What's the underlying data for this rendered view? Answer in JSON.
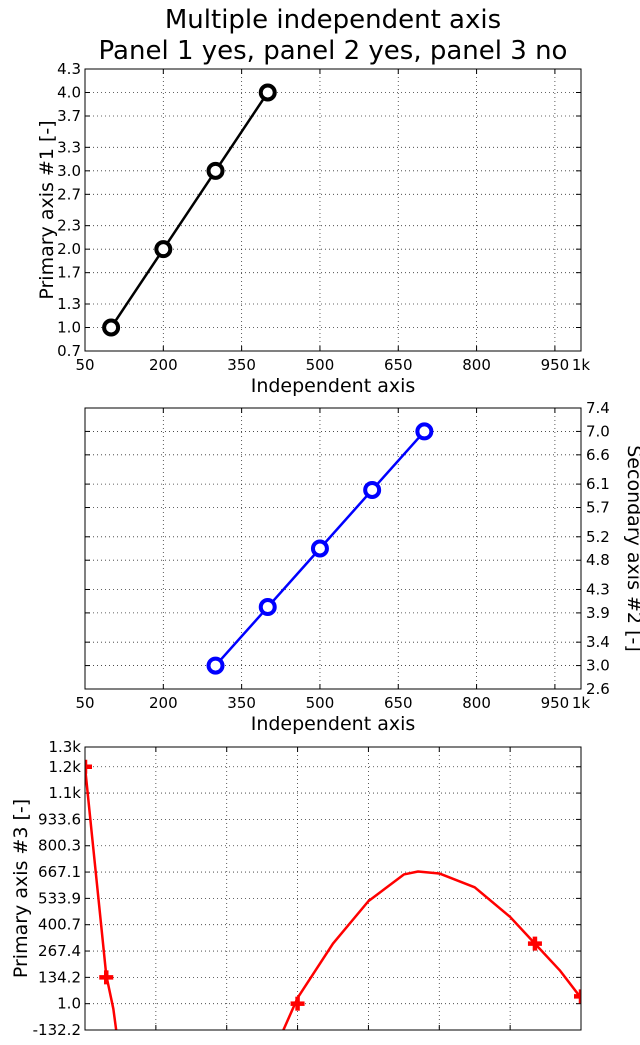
{
  "title_lines": [
    "Multiple independent axis",
    "Panel 1 yes, panel 2 yes, panel 3 no"
  ],
  "chart_data": [
    {
      "type": "line",
      "ylabel": "Primary axis #1 [-]",
      "xlabel": "Independent axis",
      "xlim": [
        50,
        1000
      ],
      "ylim": [
        0.7,
        4.3
      ],
      "xticks": [
        50,
        200,
        350,
        500,
        650,
        800,
        950,
        1000
      ],
      "xtick_labels": [
        "50",
        "200",
        "350",
        "500",
        "650",
        "800",
        "950",
        "1k"
      ],
      "yticks": [
        0.7,
        1.0,
        1.3,
        1.7,
        2.0,
        2.3,
        2.7,
        3.0,
        3.3,
        3.7,
        4.0,
        4.3
      ],
      "ytick_labels": [
        "0.7",
        "1.0",
        "1.3",
        "1.7",
        "2.0",
        "2.3",
        "2.7",
        "3.0",
        "3.3",
        "3.7",
        "4.0",
        "4.3"
      ],
      "yaxis_side": "left",
      "grid": true,
      "series": [
        {
          "color": "#000000",
          "marker": "circle",
          "x": [
            100,
            200,
            300,
            400
          ],
          "y": [
            1.0,
            2.0,
            3.0,
            4.0
          ]
        }
      ]
    },
    {
      "type": "line",
      "ylabel": "Secondary axis #2 [-]",
      "xlabel": "Independent axis",
      "xlim": [
        50,
        1000
      ],
      "ylim": [
        2.6,
        7.4
      ],
      "xticks": [
        50,
        200,
        350,
        500,
        650,
        800,
        950,
        1000
      ],
      "xtick_labels": [
        "50",
        "200",
        "350",
        "500",
        "650",
        "800",
        "950",
        "1k"
      ],
      "yticks": [
        2.6,
        3.0,
        3.4,
        3.9,
        4.3,
        4.8,
        5.2,
        5.7,
        6.1,
        6.6,
        7.0,
        7.4
      ],
      "ytick_labels": [
        "2.6",
        "3.0",
        "3.4",
        "3.9",
        "4.3",
        "4.8",
        "5.2",
        "5.7",
        "6.1",
        "6.6",
        "7.0",
        "7.4"
      ],
      "yaxis_side": "right",
      "grid": true,
      "series": [
        {
          "color": "#0000ff",
          "marker": "circle",
          "x": [
            300,
            400,
            500,
            600,
            700
          ],
          "y": [
            3.0,
            4.0,
            5.0,
            6.0,
            7.0
          ]
        }
      ]
    },
    {
      "type": "line",
      "ylabel": "Primary axis #3 [-]",
      "xlabel": "",
      "xlim": [
        0,
        7
      ],
      "ylim": [
        -132.2,
        1300
      ],
      "xticks": [
        0,
        1,
        2,
        3,
        4,
        5,
        6,
        7
      ],
      "xtick_labels": [],
      "yticks": [
        -132.2,
        1.0,
        134.2,
        267.4,
        400.7,
        533.9,
        667.1,
        800.3,
        933.6,
        1066.8,
        1200,
        1300
      ],
      "ytick_labels": [
        "-132.2",
        "1.0",
        "134.2",
        "267.4",
        "400.7",
        "533.9",
        "667.1",
        "800.3",
        "933.6",
        "1.1k",
        "1.2k",
        "1.3k"
      ],
      "yaxis_side": "left",
      "grid": true,
      "series": [
        {
          "color": "#ff0000",
          "marker": "plus",
          "x": [
            0,
            0.3,
            3,
            6.35,
            7
          ],
          "y": [
            1200,
            134.2,
            1.0,
            305,
            38
          ],
          "curve_segments": [
            {
              "x": [
                0,
                0.1,
                0.2,
                0.3,
                0.4,
                0.44
              ],
              "y": [
                1200,
                847,
                497,
                145,
                -25,
                -132.2
              ]
            },
            {
              "x": [
                2.8,
                3.0,
                3.5,
                4.0,
                4.5,
                4.7,
                5.0,
                5.5,
                6.0,
                6.35,
                6.7,
                7.0
              ],
              "y": [
                -132.2,
                30,
                305,
                520,
                655,
                670,
                660,
                590,
                440,
                305,
                170,
                30
              ]
            }
          ]
        }
      ]
    }
  ]
}
